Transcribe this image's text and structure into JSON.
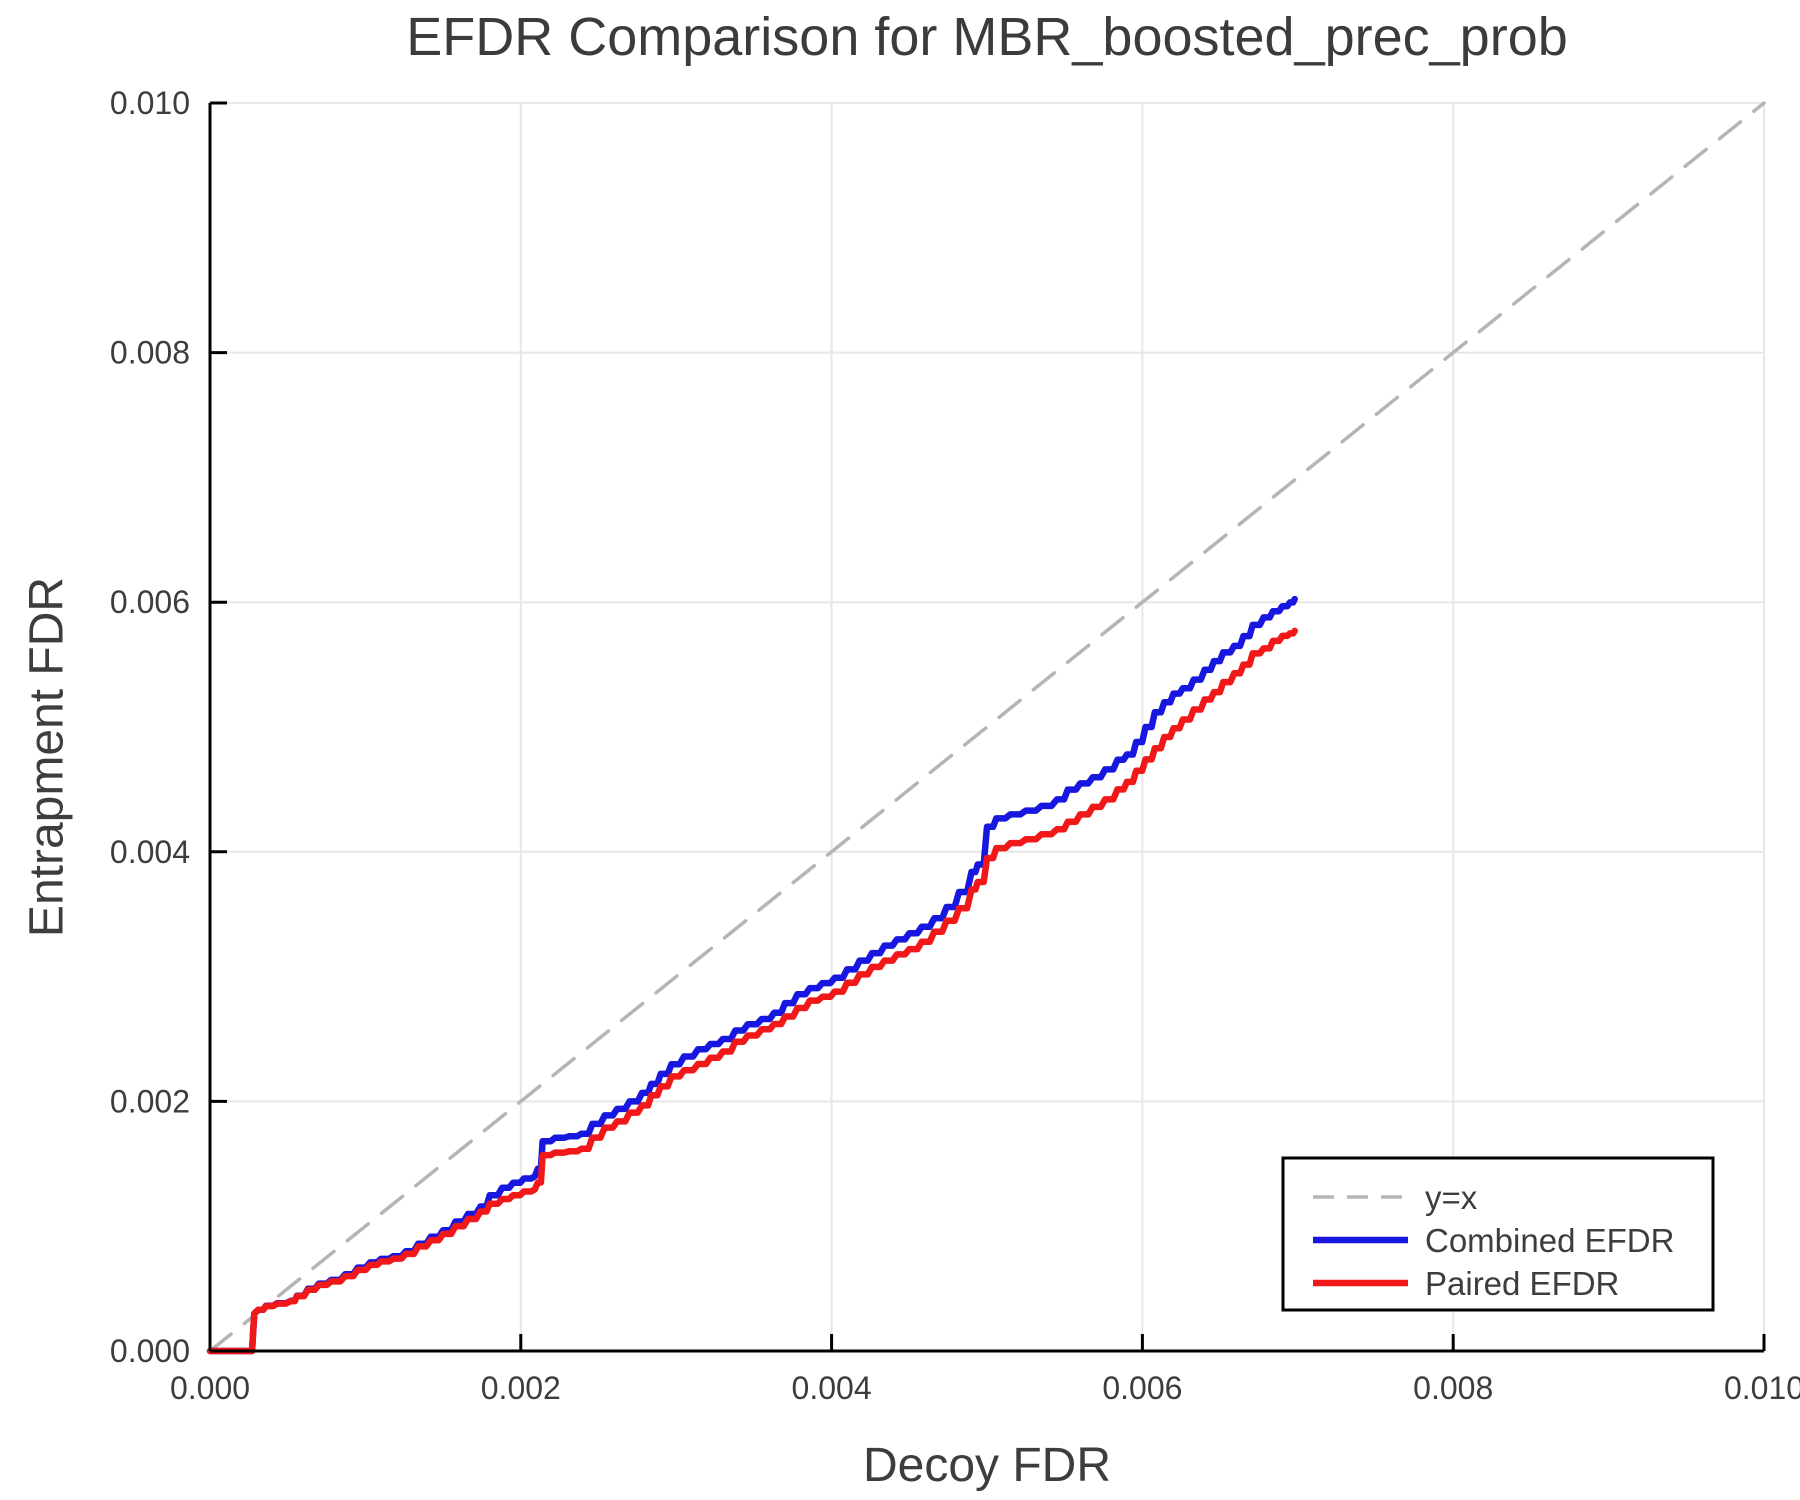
{
  "chart_data": {
    "type": "line",
    "title": "EFDR Comparison for MBR_boosted_prec_prob",
    "xlabel": "Decoy FDR",
    "ylabel": "Entrapment FDR",
    "xlim": [
      0.0,
      0.01
    ],
    "ylim": [
      0.0,
      0.01
    ],
    "grid": true,
    "legend_position": "lower right",
    "xticks": {
      "values": [
        0.0,
        0.002,
        0.004,
        0.006,
        0.008,
        0.01
      ],
      "labels": [
        "0.000",
        "0.002",
        "0.004",
        "0.006",
        "0.008",
        "0.010"
      ]
    },
    "yticks": {
      "values": [
        0.0,
        0.002,
        0.004,
        0.006,
        0.008,
        0.01
      ],
      "labels": [
        "0.000",
        "0.002",
        "0.004",
        "0.006",
        "0.008",
        "0.010"
      ]
    },
    "colors": {
      "background": "#ffffff",
      "grid": "#e7e7e7",
      "axis": "#000000",
      "text": "#3d3d3d",
      "title": "#3b3b3b",
      "identity": "#b5b5b5",
      "combined": "#1717e0",
      "paired": "#f01818",
      "legend_border": "#000000"
    },
    "legend": {
      "entries": [
        {
          "label": "y=x",
          "series": "identity"
        },
        {
          "label": "Combined EFDR",
          "series": "combined"
        },
        {
          "label": "Paired EFDR",
          "series": "paired"
        }
      ]
    },
    "series": [
      {
        "name": "identity",
        "label": "y=x",
        "style": "dashed",
        "step": false,
        "color_key": "identity",
        "points": [
          [
            0.0,
            0.0
          ],
          [
            0.01,
            0.01
          ]
        ]
      },
      {
        "name": "combined",
        "label": "Combined EFDR",
        "style": "solid",
        "step": true,
        "color_key": "combined",
        "points": [
          [
            0.0,
            0.0
          ],
          [
            0.00027,
            0.0
          ],
          [
            0.000285,
            0.0003
          ],
          [
            0.00031,
            0.00033
          ],
          [
            0.00036,
            0.000362
          ],
          [
            0.00043,
            0.000382
          ],
          [
            0.00052,
            0.000402
          ],
          [
            0.00056,
            0.000443
          ],
          [
            0.00063,
            0.000498
          ],
          [
            0.0007,
            0.00054
          ],
          [
            0.00078,
            0.00057
          ],
          [
            0.00087,
            0.000615
          ],
          [
            0.00095,
            0.000668
          ],
          [
            0.00103,
            0.00071
          ],
          [
            0.0011,
            0.000738
          ],
          [
            0.00118,
            0.00076
          ],
          [
            0.00126,
            0.0008
          ],
          [
            0.00134,
            0.00086
          ],
          [
            0.00142,
            0.000915
          ],
          [
            0.0015,
            0.000968
          ],
          [
            0.00158,
            0.001038
          ],
          [
            0.00166,
            0.001098
          ],
          [
            0.00174,
            0.001158
          ],
          [
            0.0018,
            0.001248
          ],
          [
            0.00188,
            0.001308
          ],
          [
            0.00195,
            0.001348
          ],
          [
            0.00202,
            0.001382
          ],
          [
            0.00209,
            0.0014
          ],
          [
            0.00211,
            0.00146
          ],
          [
            0.00214,
            0.00168
          ],
          [
            0.00222,
            0.001708
          ],
          [
            0.00231,
            0.00172
          ],
          [
            0.00239,
            0.00174
          ],
          [
            0.00246,
            0.00182
          ],
          [
            0.00254,
            0.001888
          ],
          [
            0.00262,
            0.00194
          ],
          [
            0.0027,
            0.002
          ],
          [
            0.00278,
            0.002068
          ],
          [
            0.00284,
            0.00214
          ],
          [
            0.0029,
            0.00222
          ],
          [
            0.00297,
            0.002298
          ],
          [
            0.00305,
            0.00236
          ],
          [
            0.00314,
            0.002418
          ],
          [
            0.00322,
            0.00246
          ],
          [
            0.0033,
            0.0025
          ],
          [
            0.00338,
            0.002568
          ],
          [
            0.00346,
            0.002618
          ],
          [
            0.00355,
            0.00266
          ],
          [
            0.00363,
            0.00271
          ],
          [
            0.0037,
            0.002788
          ],
          [
            0.00378,
            0.002858
          ],
          [
            0.00386,
            0.002908
          ],
          [
            0.00394,
            0.002948
          ],
          [
            0.00402,
            0.00299
          ],
          [
            0.0041,
            0.003058
          ],
          [
            0.00418,
            0.003128
          ],
          [
            0.00426,
            0.003188
          ],
          [
            0.00434,
            0.003248
          ],
          [
            0.00442,
            0.003298
          ],
          [
            0.0045,
            0.003348
          ],
          [
            0.00458,
            0.0034
          ],
          [
            0.00466,
            0.003468
          ],
          [
            0.00474,
            0.003558
          ],
          [
            0.00482,
            0.003678
          ],
          [
            0.0049,
            0.003838
          ],
          [
            0.00494,
            0.003898
          ],
          [
            0.005,
            0.0042
          ],
          [
            0.00506,
            0.004268
          ],
          [
            0.00515,
            0.0043
          ],
          [
            0.00525,
            0.00433
          ],
          [
            0.00535,
            0.004368
          ],
          [
            0.00545,
            0.00442
          ],
          [
            0.00552,
            0.004498
          ],
          [
            0.0056,
            0.004548
          ],
          [
            0.00568,
            0.004598
          ],
          [
            0.00576,
            0.00466
          ],
          [
            0.00584,
            0.004738
          ],
          [
            0.0059,
            0.00478
          ],
          [
            0.00596,
            0.00488
          ],
          [
            0.00602,
            0.005
          ],
          [
            0.00608,
            0.005118
          ],
          [
            0.00614,
            0.005198
          ],
          [
            0.0062,
            0.005268
          ],
          [
            0.00626,
            0.00531
          ],
          [
            0.00633,
            0.00538
          ],
          [
            0.0064,
            0.005458
          ],
          [
            0.00646,
            0.005528
          ],
          [
            0.00652,
            0.005598
          ],
          [
            0.00659,
            0.00565
          ],
          [
            0.00665,
            0.005728
          ],
          [
            0.00671,
            0.005818
          ],
          [
            0.00678,
            0.005878
          ],
          [
            0.00684,
            0.005928
          ],
          [
            0.0069,
            0.005968
          ],
          [
            0.00695,
            0.005998
          ],
          [
            0.00698,
            0.006025
          ]
        ]
      },
      {
        "name": "paired",
        "label": "Paired EFDR",
        "style": "solid",
        "step": true,
        "color_key": "paired",
        "points": [
          [
            0.0,
            0.0
          ],
          [
            0.00027,
            0.0
          ],
          [
            0.000285,
            0.0003
          ],
          [
            0.00031,
            0.00033
          ],
          [
            0.00036,
            0.00036
          ],
          [
            0.00043,
            0.00038
          ],
          [
            0.00052,
            0.0004
          ],
          [
            0.00056,
            0.00044
          ],
          [
            0.00063,
            0.00049
          ],
          [
            0.0007,
            0.00053
          ],
          [
            0.00078,
            0.000558
          ],
          [
            0.00087,
            0.0006
          ],
          [
            0.00095,
            0.00065
          ],
          [
            0.00103,
            0.00069
          ],
          [
            0.0011,
            0.000718
          ],
          [
            0.00118,
            0.00074
          ],
          [
            0.00126,
            0.000778
          ],
          [
            0.00134,
            0.000838
          ],
          [
            0.00142,
            0.000888
          ],
          [
            0.0015,
            0.000938
          ],
          [
            0.00158,
            0.001
          ],
          [
            0.00166,
            0.001058
          ],
          [
            0.00174,
            0.001118
          ],
          [
            0.0018,
            0.00118
          ],
          [
            0.00188,
            0.001218
          ],
          [
            0.00195,
            0.001248
          ],
          [
            0.00202,
            0.001278
          ],
          [
            0.00209,
            0.001295
          ],
          [
            0.00211,
            0.00135
          ],
          [
            0.00214,
            0.00157
          ],
          [
            0.00222,
            0.00159
          ],
          [
            0.00231,
            0.0016
          ],
          [
            0.00239,
            0.00162
          ],
          [
            0.00246,
            0.00171
          ],
          [
            0.00254,
            0.00179
          ],
          [
            0.00262,
            0.00184
          ],
          [
            0.0027,
            0.00191
          ],
          [
            0.00278,
            0.001968
          ],
          [
            0.00284,
            0.00205
          ],
          [
            0.0029,
            0.00212
          ],
          [
            0.00297,
            0.0022
          ],
          [
            0.00305,
            0.00225
          ],
          [
            0.00314,
            0.0023
          ],
          [
            0.00322,
            0.00235
          ],
          [
            0.0033,
            0.0024
          ],
          [
            0.00338,
            0.002478
          ],
          [
            0.00346,
            0.002528
          ],
          [
            0.00355,
            0.002578
          ],
          [
            0.00363,
            0.00262
          ],
          [
            0.0037,
            0.00268
          ],
          [
            0.00378,
            0.002748
          ],
          [
            0.00386,
            0.002808
          ],
          [
            0.00394,
            0.002838
          ],
          [
            0.00402,
            0.00288
          ],
          [
            0.0041,
            0.00295
          ],
          [
            0.00418,
            0.003018
          ],
          [
            0.00426,
            0.003078
          ],
          [
            0.00434,
            0.003128
          ],
          [
            0.00442,
            0.003178
          ],
          [
            0.0045,
            0.00322
          ],
          [
            0.00458,
            0.00328
          ],
          [
            0.00466,
            0.00336
          ],
          [
            0.00474,
            0.003448
          ],
          [
            0.00482,
            0.003548
          ],
          [
            0.0049,
            0.003698
          ],
          [
            0.00494,
            0.003758
          ],
          [
            0.005,
            0.00395
          ],
          [
            0.00506,
            0.00403
          ],
          [
            0.00515,
            0.00407
          ],
          [
            0.00525,
            0.0041
          ],
          [
            0.00535,
            0.00414
          ],
          [
            0.00545,
            0.00418
          ],
          [
            0.00552,
            0.00424
          ],
          [
            0.0056,
            0.0043
          ],
          [
            0.00568,
            0.00436
          ],
          [
            0.00576,
            0.00442
          ],
          [
            0.00584,
            0.0045
          ],
          [
            0.0059,
            0.00456
          ],
          [
            0.00596,
            0.00465
          ],
          [
            0.00602,
            0.00474
          ],
          [
            0.00608,
            0.00483
          ],
          [
            0.00614,
            0.00492
          ],
          [
            0.0062,
            0.00499
          ],
          [
            0.00626,
            0.00506
          ],
          [
            0.00633,
            0.00514
          ],
          [
            0.0064,
            0.00522
          ],
          [
            0.00646,
            0.00528
          ],
          [
            0.00652,
            0.00536
          ],
          [
            0.00659,
            0.00543
          ],
          [
            0.00665,
            0.0055
          ],
          [
            0.00671,
            0.00559
          ],
          [
            0.00678,
            0.00563
          ],
          [
            0.00684,
            0.00569
          ],
          [
            0.0069,
            0.00573
          ],
          [
            0.00695,
            0.00575
          ],
          [
            0.00698,
            0.00577
          ]
        ]
      }
    ]
  }
}
